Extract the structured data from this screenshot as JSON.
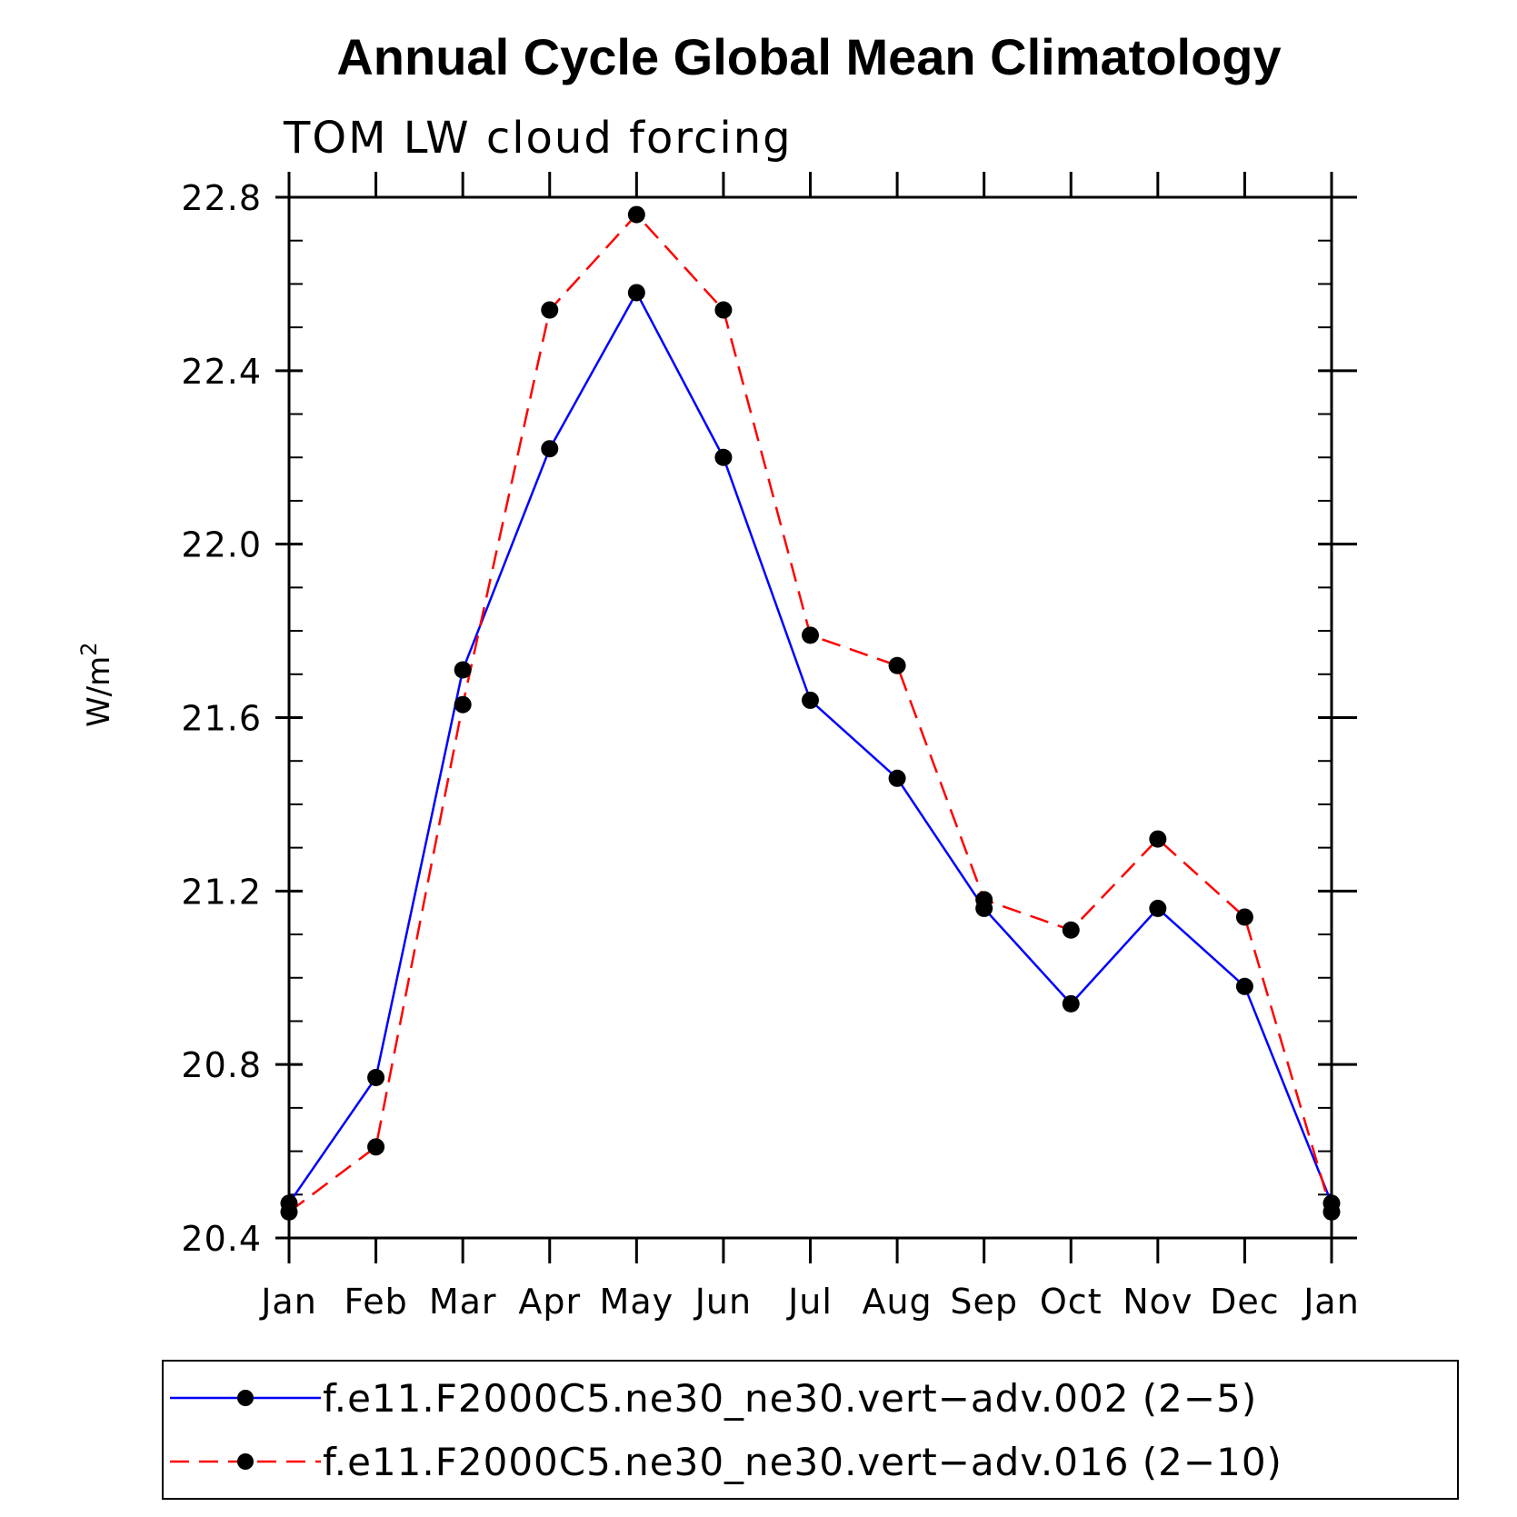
{
  "chart_data": {
    "type": "line",
    "title": "Annual Cycle Global Mean Climatology",
    "subtitle": "TOM LW cloud forcing",
    "xlabel": "",
    "ylabel": "W/m",
    "ylabel_superscript": "2",
    "categories": [
      "Jan",
      "Feb",
      "Mar",
      "Apr",
      "May",
      "Jun",
      "Jul",
      "Aug",
      "Sep",
      "Oct",
      "Nov",
      "Dec",
      "Jan"
    ],
    "ylim": [
      20.4,
      22.8
    ],
    "yticks": [
      20.4,
      20.8,
      21.2,
      21.6,
      22.0,
      22.4,
      22.8
    ],
    "ytick_labels": [
      "20.4",
      "20.8",
      "21.2",
      "21.6",
      "22.0",
      "22.4",
      "22.8"
    ],
    "series": [
      {
        "name": "f.e11.F2000C5.ne30_ne30.vert−adv.002 (2−5)",
        "color": "#0000ff",
        "dash": "solid",
        "values": [
          20.48,
          20.77,
          21.71,
          22.22,
          22.58,
          22.2,
          21.64,
          21.46,
          21.16,
          20.94,
          21.16,
          20.98,
          20.48
        ]
      },
      {
        "name": "f.e11.F2000C5.ne30_ne30.vert−adv.016 (2−10)",
        "color": "#ff0000",
        "dash": "dashed",
        "values": [
          20.46,
          20.61,
          21.63,
          22.54,
          22.76,
          22.54,
          21.79,
          21.72,
          21.18,
          21.11,
          21.32,
          21.14,
          20.46
        ]
      }
    ],
    "marker_color": "#000000",
    "legend_position": "bottom"
  }
}
